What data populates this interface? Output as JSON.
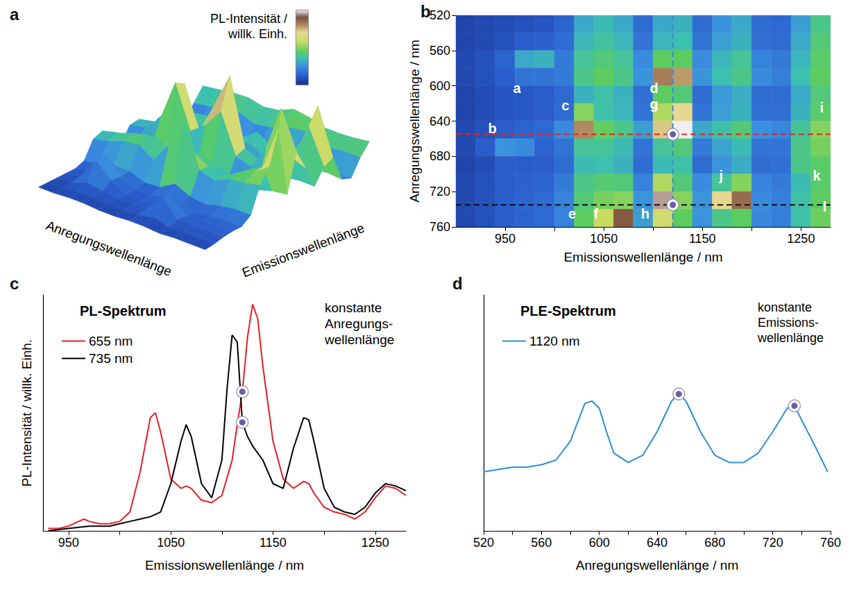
{
  "chart_data": [
    {
      "panel": "a",
      "type": "surface",
      "xlabel": "Emissionswellenlänge",
      "ylabel": "Anregungswellenlänge",
      "colorbar_label": "PL-Intensität / willk. Einh.",
      "tick_labels": false
    },
    {
      "panel": "b",
      "type": "heatmap",
      "x": [
        910,
        930,
        950,
        970,
        990,
        1010,
        1030,
        1050,
        1070,
        1090,
        1110,
        1130,
        1150,
        1170,
        1190,
        1210,
        1230,
        1250,
        1270
      ],
      "y": [
        530,
        550,
        570,
        590,
        610,
        630,
        650,
        670,
        690,
        710,
        730,
        750
      ],
      "z": [
        [
          6,
          7,
          8,
          9,
          10,
          14,
          30,
          34,
          30,
          16,
          30,
          32,
          16,
          26,
          30,
          16,
          15,
          28,
          40
        ],
        [
          6,
          7,
          9,
          12,
          13,
          16,
          33,
          37,
          33,
          18,
          33,
          35,
          18,
          28,
          32,
          17,
          16,
          30,
          42
        ],
        [
          7,
          9,
          14,
          30,
          32,
          20,
          38,
          42,
          38,
          24,
          45,
          45,
          24,
          33,
          38,
          22,
          20,
          33,
          44
        ],
        [
          7,
          9,
          12,
          18,
          18,
          20,
          40,
          45,
          40,
          26,
          82,
          78,
          26,
          35,
          40,
          24,
          21,
          35,
          45
        ],
        [
          6,
          8,
          10,
          11,
          12,
          15,
          32,
          36,
          32,
          17,
          45,
          42,
          16,
          27,
          31,
          16,
          16,
          30,
          42
        ],
        [
          6,
          8,
          10,
          11,
          12,
          16,
          50,
          36,
          33,
          18,
          55,
          70,
          18,
          28,
          32,
          17,
          17,
          32,
          44
        ],
        [
          7,
          9,
          12,
          14,
          15,
          24,
          80,
          46,
          40,
          28,
          72,
          100,
          30,
          36,
          42,
          25,
          23,
          38,
          50
        ],
        [
          7,
          12,
          26,
          24,
          14,
          18,
          38,
          38,
          34,
          18,
          38,
          42,
          20,
          29,
          34,
          18,
          18,
          40,
          48
        ],
        [
          6,
          8,
          12,
          12,
          12,
          16,
          34,
          35,
          32,
          16,
          34,
          36,
          16,
          26,
          31,
          16,
          17,
          40,
          44
        ],
        [
          7,
          9,
          12,
          13,
          14,
          20,
          40,
          43,
          42,
          22,
          55,
          42,
          24,
          38,
          50,
          22,
          20,
          34,
          44
        ],
        [
          7,
          9,
          12,
          14,
          15,
          22,
          42,
          48,
          50,
          26,
          95,
          50,
          26,
          70,
          85,
          24,
          21,
          36,
          45
        ],
        [
          7,
          9,
          12,
          14,
          15,
          22,
          45,
          58,
          88,
          28,
          62,
          45,
          26,
          40,
          45,
          23,
          21,
          36,
          47
        ]
      ],
      "color_range": [
        0,
        100
      ],
      "xlim": [
        900,
        1280
      ],
      "ylim": [
        520,
        760
      ],
      "xticks": [
        950,
        1050,
        1150,
        1250
      ],
      "xticks_minor": [
        1000,
        1100,
        1200
      ],
      "yticks": [
        520,
        560,
        600,
        640,
        680,
        720,
        760
      ],
      "xlabel": "Emissionswellenlänge / nm",
      "ylabel": "Anregungswellenlänge / nm",
      "peak_labels": [
        {
          "text": "a",
          "x": 962,
          "y": 603
        },
        {
          "text": "b",
          "x": 937,
          "y": 648
        },
        {
          "text": "c",
          "x": 1011,
          "y": 622
        },
        {
          "text": "d",
          "x": 1101,
          "y": 603
        },
        {
          "text": "e",
          "x": 1018,
          "y": 745
        },
        {
          "text": "f",
          "x": 1042,
          "y": 745
        },
        {
          "text": "g",
          "x": 1101,
          "y": 621
        },
        {
          "text": "h",
          "x": 1092,
          "y": 745
        },
        {
          "text": "i",
          "x": 1271,
          "y": 625
        },
        {
          "text": "j",
          "x": 1169,
          "y": 702
        },
        {
          "text": "k",
          "x": 1266,
          "y": 702
        },
        {
          "text": "l",
          "x": 1274,
          "y": 737
        }
      ],
      "lines": [
        {
          "axis": "y",
          "value": 655,
          "color": "#e3261f",
          "line_style": "dashed"
        },
        {
          "axis": "y",
          "value": 735,
          "color": "#111111",
          "line_style": "dashed"
        },
        {
          "axis": "x",
          "value": 1120,
          "color": "#3a8ad6",
          "line_style": "dashed"
        }
      ],
      "markers": [
        {
          "x": 1120,
          "y": 655
        },
        {
          "x": 1120,
          "y": 735
        }
      ]
    },
    {
      "panel": "c",
      "type": "line",
      "title": "PL-Spektrum",
      "annotation": [
        "konstante",
        "Anregungs-",
        "wellenlänge"
      ],
      "series": [
        {
          "name": "655 nm",
          "color": "#e41e26",
          "x": [
            930,
            940,
            950,
            960,
            965,
            970,
            980,
            990,
            1000,
            1010,
            1020,
            1030,
            1035,
            1040,
            1050,
            1060,
            1065,
            1070,
            1080,
            1090,
            1100,
            1110,
            1115,
            1120,
            1125,
            1130,
            1135,
            1140,
            1150,
            1160,
            1170,
            1180,
            1185,
            1190,
            1200,
            1210,
            1220,
            1230,
            1240,
            1250,
            1260,
            1270,
            1280
          ],
          "values": [
            0.01,
            0.01,
            0.02,
            0.04,
            0.05,
            0.04,
            0.03,
            0.03,
            0.04,
            0.08,
            0.25,
            0.48,
            0.5,
            0.42,
            0.22,
            0.18,
            0.19,
            0.18,
            0.13,
            0.12,
            0.15,
            0.3,
            0.45,
            0.59,
            0.82,
            0.96,
            0.9,
            0.7,
            0.38,
            0.22,
            0.18,
            0.21,
            0.2,
            0.16,
            0.1,
            0.08,
            0.07,
            0.05,
            0.08,
            0.14,
            0.19,
            0.18,
            0.15
          ]
        },
        {
          "name": "735 nm",
          "color": "#000000",
          "x": [
            930,
            950,
            970,
            990,
            1000,
            1010,
            1020,
            1030,
            1040,
            1050,
            1060,
            1065,
            1070,
            1080,
            1090,
            1100,
            1105,
            1110,
            1115,
            1120,
            1125,
            1130,
            1140,
            1150,
            1160,
            1170,
            1180,
            1185,
            1190,
            1200,
            1210,
            1220,
            1230,
            1240,
            1250,
            1260,
            1270,
            1280
          ],
          "values": [
            0.0,
            0.01,
            0.02,
            0.02,
            0.03,
            0.04,
            0.05,
            0.06,
            0.08,
            0.2,
            0.38,
            0.45,
            0.4,
            0.2,
            0.14,
            0.3,
            0.6,
            0.83,
            0.8,
            0.46,
            0.4,
            0.36,
            0.3,
            0.2,
            0.18,
            0.35,
            0.48,
            0.47,
            0.38,
            0.18,
            0.1,
            0.08,
            0.07,
            0.1,
            0.16,
            0.2,
            0.19,
            0.17
          ]
        }
      ],
      "xlim": [
        925,
        1280
      ],
      "xticks": [
        950,
        1050,
        1150,
        1250
      ],
      "xticks_minor": [
        1000,
        1100,
        1200
      ],
      "ylim": [
        0,
        1
      ],
      "xlabel": "Emissionswellenlänge / nm",
      "ylabel": "PL-Intensität / willk. Einh.",
      "tick_labels": "x",
      "legend": "upper left",
      "markers": [
        {
          "x": 1120,
          "y": 0.59
        },
        {
          "x": 1120,
          "y": 0.46
        }
      ]
    },
    {
      "panel": "d",
      "type": "line",
      "title": "PLE-Spektrum",
      "annotation": [
        "konstante",
        "Emissions-",
        "wellenlänge"
      ],
      "series": [
        {
          "name": "1120 nm",
          "color": "#2b8fd0",
          "x": [
            520,
            530,
            540,
            550,
            560,
            570,
            580,
            590,
            595,
            600,
            605,
            610,
            620,
            630,
            640,
            650,
            655,
            660,
            670,
            680,
            690,
            700,
            710,
            720,
            730,
            735,
            740,
            750,
            758
          ],
          "values": [
            0.25,
            0.26,
            0.27,
            0.27,
            0.28,
            0.3,
            0.38,
            0.54,
            0.55,
            0.52,
            0.42,
            0.33,
            0.29,
            0.32,
            0.42,
            0.55,
            0.58,
            0.55,
            0.42,
            0.32,
            0.29,
            0.29,
            0.33,
            0.42,
            0.52,
            0.53,
            0.47,
            0.35,
            0.25
          ]
        }
      ],
      "xlim": [
        520,
        760
      ],
      "xticks": [
        520,
        560,
        600,
        640,
        680,
        720,
        760
      ],
      "xticks_minor": [
        540,
        580,
        620,
        660,
        700,
        740
      ],
      "ylim": [
        0,
        1
      ],
      "xlabel": "Anregungswellenlänge / nm",
      "tick_labels": "x",
      "legend": "upper left",
      "markers": [
        {
          "x": 655,
          "y": 0.58
        },
        {
          "x": 735,
          "y": 0.53
        }
      ]
    }
  ]
}
